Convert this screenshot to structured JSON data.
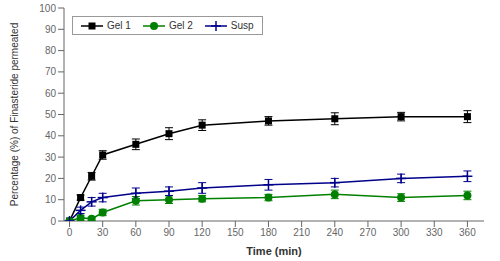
{
  "chart_data": {
    "type": "line",
    "xlabel": "Time (min)",
    "ylabel": "Percentage (%) of Finasteride permeated",
    "x": [
      0,
      10,
      20,
      30,
      60,
      90,
      120,
      180,
      240,
      300,
      360
    ],
    "series": [
      {
        "name": "Gel 1",
        "color": "#000000",
        "marker": "square",
        "values": [
          0,
          11,
          21,
          31,
          36,
          41,
          45,
          47,
          48,
          49,
          49
        ],
        "errors": [
          0,
          1.2,
          1.8,
          2.0,
          2.5,
          2.8,
          2.5,
          2.0,
          2.8,
          2.0,
          2.8
        ]
      },
      {
        "name": "Gel 2",
        "color": "#008000",
        "marker": "circle",
        "values": [
          0,
          1.5,
          1.0,
          4.0,
          9.5,
          10,
          10.5,
          11,
          12.5,
          11,
          12
        ],
        "errors": [
          0,
          1.2,
          0.8,
          1.5,
          2.0,
          1.8,
          1.5,
          1.5,
          2.0,
          1.8,
          2.0
        ]
      },
      {
        "name": "Susp",
        "color": "#00008B",
        "marker": "plus",
        "values": [
          0,
          5,
          9,
          11,
          13,
          14,
          15.5,
          17,
          18,
          20,
          21
        ],
        "errors": [
          0,
          1.5,
          2.0,
          2.0,
          2.5,
          2.0,
          2.5,
          2.5,
          2.0,
          2.0,
          2.5
        ]
      }
    ],
    "xlim": [
      -5,
      375
    ],
    "ylim": [
      0,
      100
    ],
    "xticks": [
      0,
      30,
      60,
      90,
      120,
      150,
      180,
      210,
      240,
      270,
      300,
      330,
      360
    ],
    "yticks": [
      0,
      10,
      20,
      30,
      40,
      50,
      60,
      70,
      80,
      90,
      100
    ],
    "grid": false,
    "legend": "upper left"
  }
}
